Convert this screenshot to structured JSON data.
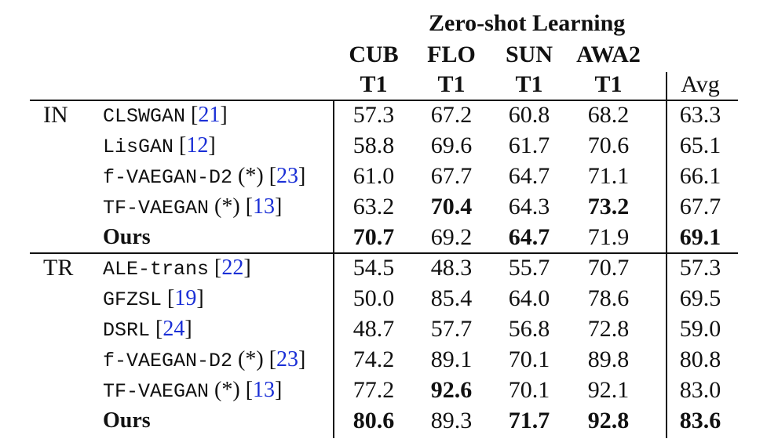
{
  "header": {
    "group_title": "Zero-shot Learning",
    "datasets": [
      "CUB",
      "FLO",
      "SUN",
      "AWA2"
    ],
    "subheads": [
      "T1",
      "T1",
      "T1",
      "T1"
    ],
    "avg": "Avg"
  },
  "sections": [
    {
      "label": "IN",
      "rows": [
        {
          "name": "CLSWGAN",
          "mono": true,
          "suffix": "",
          "ref": "21",
          "bold_name": false,
          "values": [
            "57.3",
            "67.2",
            "60.8",
            "68.2",
            "63.3"
          ],
          "bold": [
            false,
            false,
            false,
            false,
            false
          ]
        },
        {
          "name": "LisGAN",
          "mono": true,
          "suffix": "",
          "ref": "12",
          "bold_name": false,
          "values": [
            "58.8",
            "69.6",
            "61.7",
            "70.6",
            "65.1"
          ],
          "bold": [
            false,
            false,
            false,
            false,
            false
          ]
        },
        {
          "name": "f-VAEGAN-D2",
          "mono": true,
          "suffix": " (*)",
          "ref": "23",
          "bold_name": false,
          "values": [
            "61.0",
            "67.7",
            "64.7",
            "71.1",
            "66.1"
          ],
          "bold": [
            false,
            false,
            false,
            false,
            false
          ]
        },
        {
          "name": "TF-VAEGAN",
          "mono": true,
          "suffix": " (*)",
          "ref": "13",
          "bold_name": false,
          "values": [
            "63.2",
            "70.4",
            "64.3",
            "73.2",
            "67.7"
          ],
          "bold": [
            false,
            true,
            false,
            true,
            false
          ]
        },
        {
          "name": "Ours",
          "mono": false,
          "suffix": "",
          "ref": "",
          "bold_name": true,
          "values": [
            "70.7",
            "69.2",
            "64.7",
            "71.9",
            "69.1"
          ],
          "bold": [
            true,
            false,
            true,
            false,
            true
          ]
        }
      ]
    },
    {
      "label": "TR",
      "rows": [
        {
          "name": "ALE-trans",
          "mono": true,
          "suffix": "",
          "ref": "22",
          "bold_name": false,
          "values": [
            "54.5",
            "48.3",
            "55.7",
            "70.7",
            "57.3"
          ],
          "bold": [
            false,
            false,
            false,
            false,
            false
          ]
        },
        {
          "name": "GFZSL",
          "mono": true,
          "suffix": "",
          "ref": "19",
          "bold_name": false,
          "values": [
            "50.0",
            "85.4",
            "64.0",
            "78.6",
            "69.5"
          ],
          "bold": [
            false,
            false,
            false,
            false,
            false
          ]
        },
        {
          "name": "DSRL",
          "mono": true,
          "suffix": "",
          "ref": "24",
          "bold_name": false,
          "values": [
            "48.7",
            "57.7",
            "56.8",
            "72.8",
            "59.0"
          ],
          "bold": [
            false,
            false,
            false,
            false,
            false
          ]
        },
        {
          "name": "f-VAEGAN-D2",
          "mono": true,
          "suffix": " (*)",
          "ref": "23",
          "bold_name": false,
          "values": [
            "74.2",
            "89.1",
            "70.1",
            "89.8",
            "80.8"
          ],
          "bold": [
            false,
            false,
            false,
            false,
            false
          ]
        },
        {
          "name": "TF-VAEGAN",
          "mono": true,
          "suffix": " (*)",
          "ref": "13",
          "bold_name": false,
          "values": [
            "77.2",
            "92.6",
            "70.1",
            "92.1",
            "83.0"
          ],
          "bold": [
            false,
            true,
            false,
            false,
            false
          ]
        },
        {
          "name": "Ours",
          "mono": false,
          "suffix": "",
          "ref": "",
          "bold_name": true,
          "values": [
            "80.6",
            "89.3",
            "71.7",
            "92.8",
            "83.6"
          ],
          "bold": [
            true,
            false,
            true,
            true,
            true
          ]
        }
      ]
    }
  ]
}
